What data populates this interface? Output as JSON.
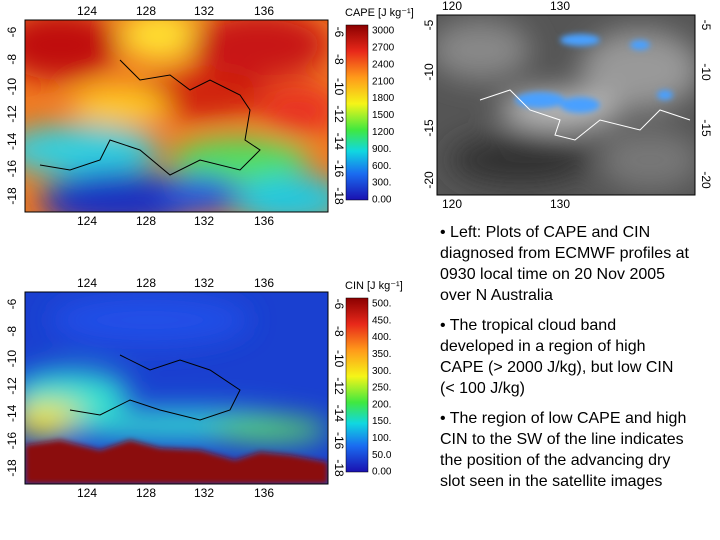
{
  "cape_map": {
    "x_labels": [
      "124",
      "128",
      "132",
      "136"
    ],
    "y_labels": [
      "-6",
      "-8",
      "-10",
      "-12",
      "-14",
      "-16",
      "-18"
    ],
    "colorbar_title": "CAPE [J kg⁻¹]",
    "colorbar_labels": [
      "3000",
      "2700",
      "2400",
      "2100",
      "1800",
      "1500",
      "1200",
      "900.",
      "600.",
      "300.",
      "0.00"
    ]
  },
  "cin_map": {
    "x_labels": [
      "124",
      "128",
      "132",
      "136"
    ],
    "y_labels": [
      "-6",
      "-8",
      "-10",
      "-12",
      "-14",
      "-16",
      "-18"
    ],
    "colorbar_title": "CIN [J kg⁻¹]",
    "colorbar_labels": [
      "500.",
      "450.",
      "400.",
      "350.",
      "300.",
      "250.",
      "200.",
      "150.",
      "100.",
      "50.0",
      "0.00"
    ]
  },
  "satellite": {
    "x_labels": [
      "120",
      "130"
    ],
    "y_labels": [
      "-5",
      "-10",
      "-15",
      "-20"
    ]
  },
  "bullets": [
    "• Left: Plots of CAPE and CIN diagnosed from ECMWF profiles at 0930 local time on 20 Nov 2005 over N Australia",
    "• The tropical cloud band developed in a region of high CAPE (> 2000 J/kg), but low CIN (< 100 J/kg)",
    "• The region of low CAPE and high CIN to the SW of the line indicates the position of the advancing dry slot seen in the satellite images"
  ]
}
